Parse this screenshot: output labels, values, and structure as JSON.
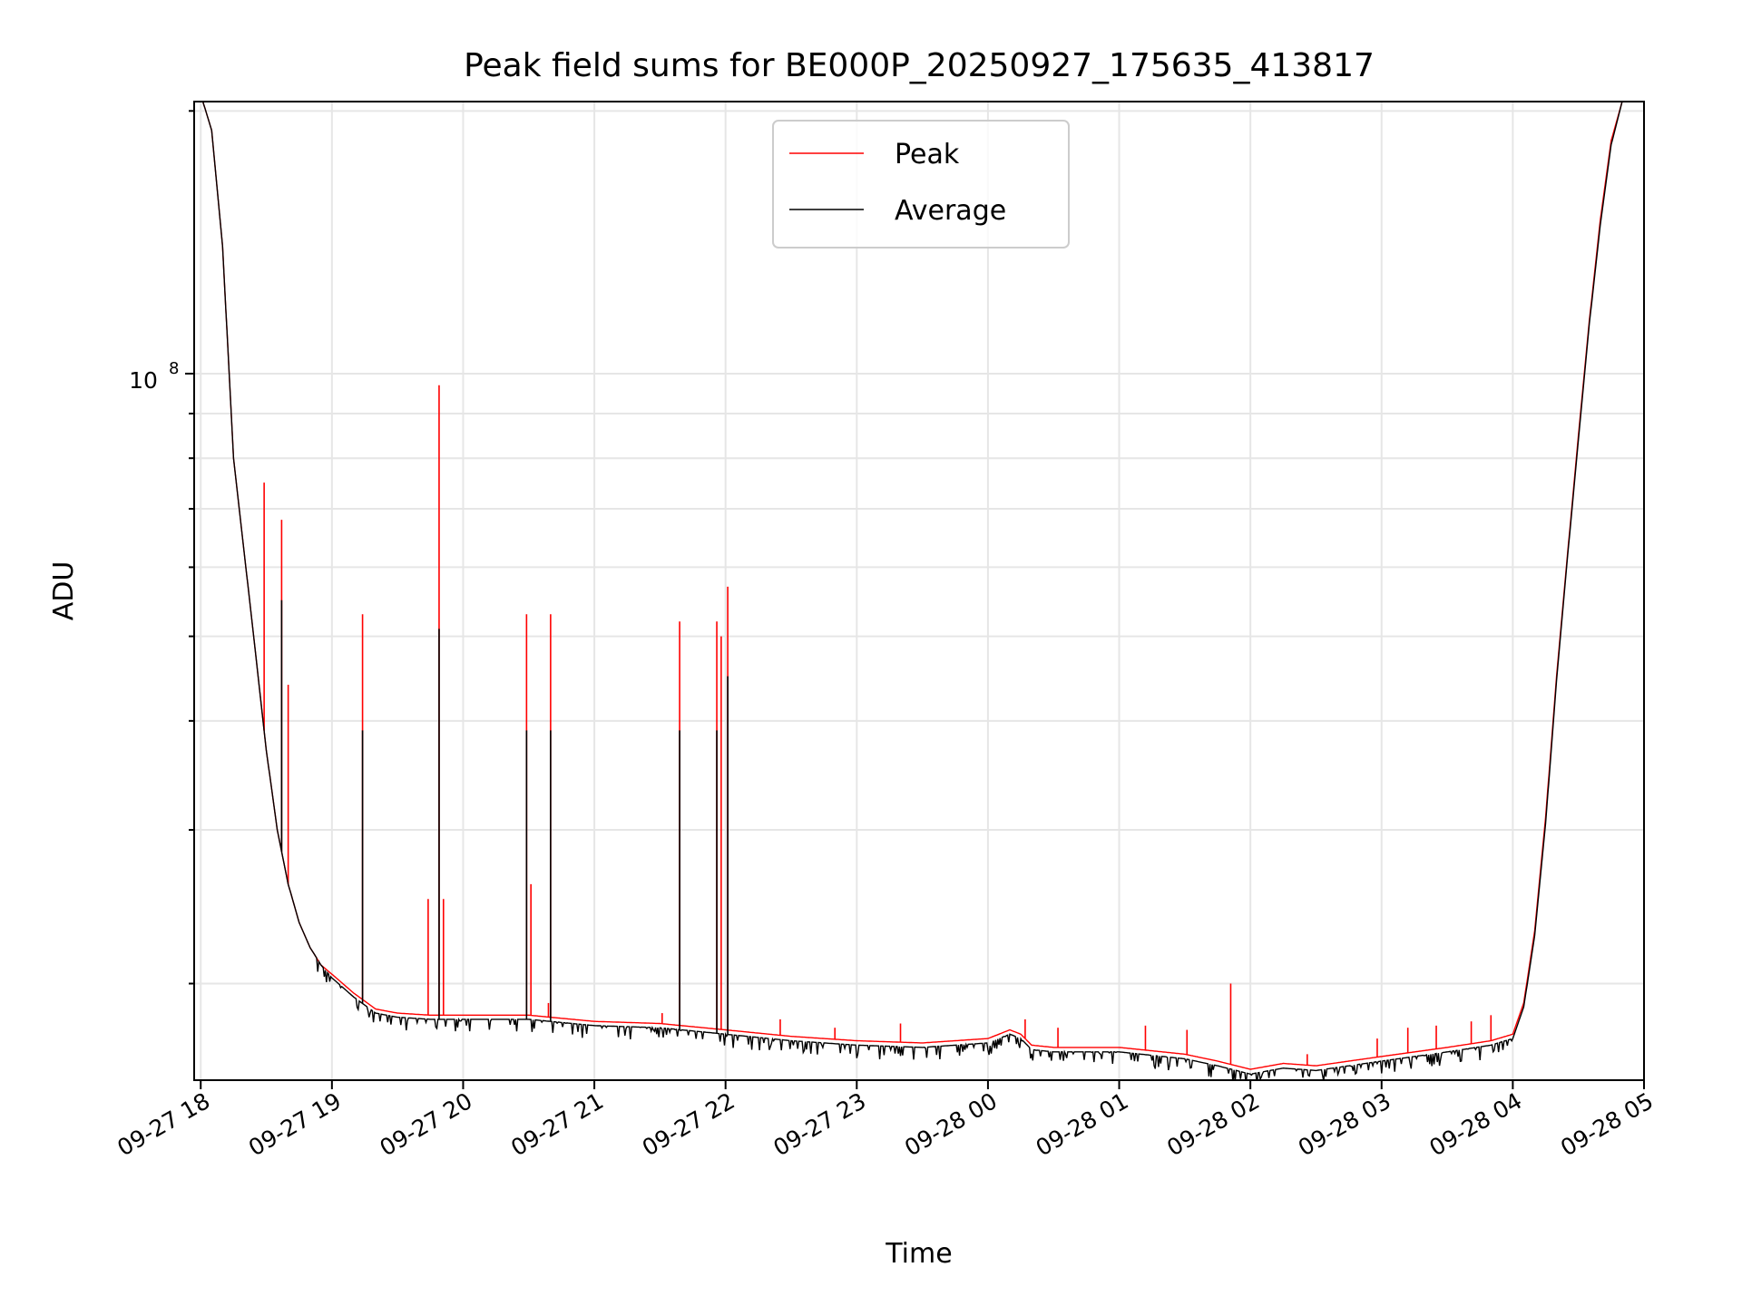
{
  "chart_data": {
    "type": "line",
    "title": "Peak field sums for BE000P_20250927_175635_413817",
    "xlabel": "Time",
    "ylabel": "ADU",
    "y_scale": "log",
    "ylim": [
      15500000,
      205000000
    ],
    "xlim": [
      "09-27 17:57",
      "09-28 05:00"
    ],
    "x_ticks": [
      "09-27 18",
      "09-27 19",
      "09-27 20",
      "09-27 21",
      "09-27 22",
      "09-27 23",
      "09-28 00",
      "09-28 01",
      "09-28 02",
      "09-28 03",
      "09-28 04",
      "09-28 05"
    ],
    "y_ticks": [
      {
        "label": "10",
        "exponent": "8",
        "value": 100000000
      }
    ],
    "grid": true,
    "legend_position": "top-center",
    "colors": {
      "peak": "#ff0000",
      "average": "#000000",
      "grid": "#e6e6e6"
    },
    "series": [
      {
        "name": "Peak",
        "color": "#ff0000",
        "x": [
          "09-27 17:57",
          "09-27 18:01",
          "09-27 18:05",
          "09-27 18:10",
          "09-27 18:15",
          "09-27 18:20",
          "09-27 18:25",
          "09-27 18:30",
          "09-27 18:35",
          "09-27 18:40",
          "09-27 18:45",
          "09-27 18:50",
          "09-27 18:55",
          "09-27 19:00",
          "09-27 19:10",
          "09-27 19:20",
          "09-27 19:30",
          "09-27 19:45",
          "09-27 20:00",
          "09-27 20:30",
          "09-27 21:00",
          "09-27 21:30",
          "09-27 22:00",
          "09-27 22:30",
          "09-27 23:00",
          "09-27 23:30",
          "09-28 00:00",
          "09-28 00:10",
          "09-28 00:15",
          "09-28 00:20",
          "09-28 00:30",
          "09-28 01:00",
          "09-28 01:30",
          "09-28 01:45",
          "09-28 02:00",
          "09-28 02:15",
          "09-28 02:30",
          "09-28 03:00",
          "09-28 03:30",
          "09-28 03:50",
          "09-28 04:00",
          "09-28 04:05",
          "09-28 04:10",
          "09-28 04:15",
          "09-28 04:20",
          "09-28 04:25",
          "09-28 04:30",
          "09-28 04:35",
          "09-28 04:40",
          "09-28 04:45",
          "09-28 04:50",
          "09-28 04:55"
        ],
        "y": [
          205000000,
          205000000,
          190000000,
          140000000,
          80000000,
          62000000,
          48000000,
          37000000,
          30000000,
          26000000,
          23500000,
          22000000,
          21000000,
          20500000,
          19500000,
          18700000,
          18500000,
          18400000,
          18400000,
          18400000,
          18100000,
          18000000,
          17700000,
          17400000,
          17200000,
          17100000,
          17300000,
          17700000,
          17500000,
          17000000,
          16900000,
          16900000,
          16600000,
          16300000,
          15950000,
          16200000,
          16100000,
          16500000,
          16900000,
          17200000,
          17500000,
          19000000,
          23000000,
          31000000,
          45000000,
          62000000,
          85000000,
          115000000,
          150000000,
          185000000,
          205000000,
          205000000
        ],
        "spikes": [
          {
            "x": "09-27 18:29",
            "y": 75000000
          },
          {
            "x": "09-27 18:37",
            "y": 68000000
          },
          {
            "x": "09-27 18:40",
            "y": 44000000
          },
          {
            "x": "09-27 19:14",
            "y": 53000000
          },
          {
            "x": "09-27 19:44",
            "y": 25000000
          },
          {
            "x": "09-27 19:49",
            "y": 97000000
          },
          {
            "x": "09-27 19:51",
            "y": 25000000
          },
          {
            "x": "09-27 20:29",
            "y": 53000000
          },
          {
            "x": "09-27 20:31",
            "y": 26000000
          },
          {
            "x": "09-27 20:39",
            "y": 19000000
          },
          {
            "x": "09-27 20:40",
            "y": 53000000
          },
          {
            "x": "09-27 21:31",
            "y": 18500000
          },
          {
            "x": "09-27 21:39",
            "y": 52000000
          },
          {
            "x": "09-27 21:56",
            "y": 52000000
          },
          {
            "x": "09-27 21:58",
            "y": 50000000
          },
          {
            "x": "09-27 22:01",
            "y": 57000000
          },
          {
            "x": "09-27 22:25",
            "y": 18200000
          },
          {
            "x": "09-27 22:50",
            "y": 17800000
          },
          {
            "x": "09-27 23:20",
            "y": 18000000
          },
          {
            "x": "09-28 00:17",
            "y": 18200000
          },
          {
            "x": "09-28 00:32",
            "y": 17800000
          },
          {
            "x": "09-28 01:12",
            "y": 17900000
          },
          {
            "x": "09-28 01:31",
            "y": 17700000
          },
          {
            "x": "09-28 01:51",
            "y": 20000000
          },
          {
            "x": "09-28 02:26",
            "y": 16600000
          },
          {
            "x": "09-28 02:58",
            "y": 17300000
          },
          {
            "x": "09-28 03:12",
            "y": 17800000
          },
          {
            "x": "09-28 03:25",
            "y": 17900000
          },
          {
            "x": "09-28 03:41",
            "y": 18100000
          },
          {
            "x": "09-28 03:50",
            "y": 18400000
          }
        ]
      },
      {
        "name": "Average",
        "color": "#000000",
        "x": [
          "09-27 17:57",
          "09-27 18:01",
          "09-27 18:05",
          "09-27 18:10",
          "09-27 18:15",
          "09-27 18:20",
          "09-27 18:25",
          "09-27 18:30",
          "09-27 18:35",
          "09-27 18:40",
          "09-27 18:45",
          "09-27 18:50",
          "09-27 18:55",
          "09-27 19:00",
          "09-27 19:10",
          "09-27 19:20",
          "09-27 19:30",
          "09-27 19:45",
          "09-27 20:00",
          "09-27 20:30",
          "09-27 21:00",
          "09-27 21:30",
          "09-27 22:00",
          "09-27 22:30",
          "09-27 23:00",
          "09-27 23:30",
          "09-28 00:00",
          "09-28 00:10",
          "09-28 00:15",
          "09-28 00:20",
          "09-28 00:30",
          "09-28 01:00",
          "09-28 01:30",
          "09-28 01:45",
          "09-28 02:00",
          "09-28 02:15",
          "09-28 02:30",
          "09-28 03:00",
          "09-28 03:30",
          "09-28 03:50",
          "09-28 04:00",
          "09-28 04:05",
          "09-28 04:10",
          "09-28 04:15",
          "09-28 04:20",
          "09-28 04:25",
          "09-28 04:30",
          "09-28 04:35",
          "09-28 04:40",
          "09-28 04:45",
          "09-28 04:50",
          "09-28 04:55"
        ],
        "y": [
          205000000,
          205000000,
          190000000,
          140000000,
          80000000,
          62000000,
          48000000,
          37000000,
          30000000,
          26000000,
          23500000,
          22000000,
          21000000,
          20300000,
          19300000,
          18500000,
          18300000,
          18200000,
          18200000,
          18200000,
          17900000,
          17800000,
          17500000,
          17200000,
          17000000,
          16900000,
          17100000,
          17500000,
          17300000,
          16800000,
          16700000,
          16700000,
          16400000,
          16100000,
          15750000,
          16000000,
          15900000,
          16300000,
          16700000,
          17000000,
          17300000,
          18800000,
          22700000,
          30500000,
          44500000,
          61500000,
          84000000,
          114000000,
          148000000,
          183000000,
          205000000,
          205000000
        ],
        "spikes": [
          {
            "x": "09-27 18:37",
            "y": 55000000
          },
          {
            "x": "09-27 19:14",
            "y": 39000000
          },
          {
            "x": "09-27 19:49",
            "y": 51000000
          },
          {
            "x": "09-27 20:29",
            "y": 39000000
          },
          {
            "x": "09-27 20:40",
            "y": 39000000
          },
          {
            "x": "09-27 21:39",
            "y": 39000000
          },
          {
            "x": "09-27 21:56",
            "y": 39000000
          },
          {
            "x": "09-27 22:01",
            "y": 45000000
          }
        ]
      }
    ]
  }
}
